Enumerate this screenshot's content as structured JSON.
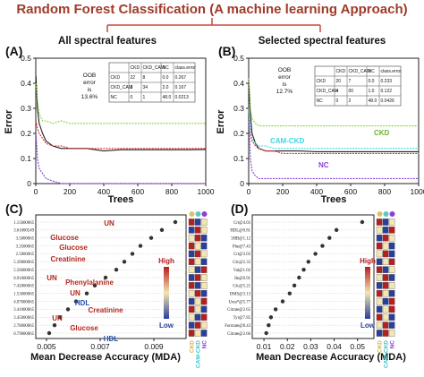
{
  "figure": {
    "title": "Random Forest Classification (A machine learning Approach)",
    "subtitle_left": "All spectral features",
    "subtitle_right": "Selected spectral features"
  },
  "chart_data": [
    {
      "panel": "(A)",
      "type": "line",
      "xlabel": "Trees",
      "ylabel": "Error",
      "xlim": [
        0,
        1000
      ],
      "ylim": [
        0,
        0.5
      ],
      "xticks": [
        "0",
        "200",
        "400",
        "600",
        "800",
        "1000"
      ],
      "yticks": [
        "0",
        "0.1",
        "0.2",
        "0.3",
        "0.4",
        "0.5"
      ],
      "oob_text": [
        "OOB",
        "error",
        "is",
        "13.6%"
      ],
      "series": [
        {
          "name": "OOB",
          "color": "#222222",
          "x": [
            1,
            10,
            20,
            40,
            60,
            100,
            150,
            200,
            300,
            400,
            500,
            600,
            700,
            800,
            900,
            1000
          ],
          "y": [
            0.43,
            0.3,
            0.24,
            0.2,
            0.17,
            0.15,
            0.14,
            0.14,
            0.14,
            0.13,
            0.135,
            0.135,
            0.135,
            0.135,
            0.135,
            0.136
          ]
        },
        {
          "name": "CKD",
          "color": "#e12a2a",
          "x": [
            1,
            10,
            20,
            40,
            60,
            100,
            150,
            200,
            300,
            400,
            500,
            600,
            700,
            800,
            900,
            1000
          ],
          "y": [
            0.25,
            0.22,
            0.2,
            0.18,
            0.16,
            0.15,
            0.15,
            0.14,
            0.14,
            0.14,
            0.14,
            0.14,
            0.14,
            0.14,
            0.14,
            0.14
          ]
        },
        {
          "name": "CKD_CAM",
          "color": "#8fd23a",
          "x": [
            1,
            10,
            20,
            40,
            60,
            100,
            150,
            200,
            300,
            400,
            500,
            600,
            700,
            800,
            900,
            1000
          ],
          "y": [
            0.4,
            0.33,
            0.28,
            0.25,
            0.25,
            0.24,
            0.25,
            0.24,
            0.24,
            0.24,
            0.24,
            0.24,
            0.24,
            0.24,
            0.24,
            0.24
          ]
        },
        {
          "name": "NC",
          "color": "#8a3fd6",
          "x": [
            1,
            10,
            20,
            40,
            60,
            100,
            150,
            200,
            300,
            400,
            500,
            600,
            700,
            800,
            900,
            1000
          ],
          "y": [
            0.2,
            0.1,
            0.06,
            0.04,
            0.02,
            0.01,
            0.0,
            0.0,
            0.0,
            0.0,
            0.0,
            0.0,
            0.0,
            0.0,
            0.0,
            0.0
          ]
        }
      ],
      "confusion_table": {
        "header": [
          "",
          "CKD",
          "CKD_CAM",
          "NC",
          "class.error"
        ],
        "rows": [
          [
            "CKD",
            "22",
            "8",
            "0.0",
            "0.267"
          ],
          [
            "CKD_CAM",
            "3",
            "34",
            "2.0",
            "0.167"
          ],
          [
            "NC",
            "0",
            "1",
            "48.0",
            "0.0213"
          ]
        ]
      }
    },
    {
      "panel": "(B)",
      "type": "line",
      "xlabel": "Trees",
      "ylabel": "Error",
      "xlim": [
        0,
        1000
      ],
      "ylim": [
        0,
        0.5
      ],
      "xticks": [
        "0",
        "200",
        "400",
        "600",
        "800",
        "1000"
      ],
      "yticks": [
        "0",
        "0.1",
        "0.2",
        "0.3",
        "0.4",
        "0.5"
      ],
      "oob_text": [
        "OOB",
        "error",
        "is",
        "12.7%"
      ],
      "series": [
        {
          "name": "OOB",
          "color": "#222222",
          "x": [
            1,
            10,
            20,
            40,
            60,
            100,
            150,
            200,
            300,
            400,
            500,
            600,
            700,
            800,
            900,
            1000
          ],
          "y": [
            0.4,
            0.28,
            0.2,
            0.16,
            0.14,
            0.13,
            0.13,
            0.13,
            0.13,
            0.127,
            0.127,
            0.127,
            0.127,
            0.127,
            0.127,
            0.127
          ]
        },
        {
          "name": "CKD",
          "color": "#e12a2a",
          "x": [
            1,
            10,
            20,
            40,
            60,
            100,
            150,
            200,
            300,
            400,
            500,
            600,
            700,
            800,
            900,
            1000
          ],
          "y": [
            0.3,
            0.2,
            0.17,
            0.15,
            0.14,
            0.13,
            0.13,
            0.12,
            0.12,
            0.12,
            0.12,
            0.12,
            0.12,
            0.12,
            0.12,
            0.12
          ]
        },
        {
          "name": "CKD_CAM",
          "color": "#8fd23a",
          "x": [
            1,
            10,
            20,
            40,
            60,
            100,
            150,
            200,
            300,
            400,
            500,
            600,
            700,
            800,
            900,
            1000
          ],
          "y": [
            0.42,
            0.3,
            0.26,
            0.24,
            0.23,
            0.23,
            0.23,
            0.23,
            0.23,
            0.23,
            0.23,
            0.23,
            0.23,
            0.23,
            0.23,
            0.23
          ]
        },
        {
          "name": "NC",
          "color": "#8a3fd6",
          "x": [
            1,
            10,
            20,
            40,
            60,
            100,
            150,
            200,
            300,
            400,
            500,
            600,
            700,
            800,
            900,
            1000
          ],
          "y": [
            0.25,
            0.1,
            0.05,
            0.03,
            0.02,
            0.02,
            0.02,
            0.02,
            0.02,
            0.02,
            0.02,
            0.02,
            0.02,
            0.02,
            0.02,
            0.02
          ]
        },
        {
          "name": "CAM-CKD",
          "color": "#3fd6e6",
          "x": [
            1,
            10,
            20,
            40,
            60,
            100,
            150,
            200,
            300,
            400,
            500,
            600,
            700,
            800,
            900,
            1000
          ],
          "y": [
            0.3,
            0.22,
            0.18,
            0.16,
            0.15,
            0.15,
            0.14,
            0.14,
            0.14,
            0.14,
            0.14,
            0.14,
            0.14,
            0.14,
            0.14,
            0.14
          ]
        }
      ],
      "labels": [
        "CAM-CKD",
        "CKD",
        "NC"
      ],
      "confusion_table": {
        "header": [
          "",
          "CKD",
          "CKD_CAM",
          "NC",
          "class.error"
        ],
        "rows": [
          [
            "CKD",
            "20",
            "7",
            "0.0",
            "0.233"
          ],
          [
            "CKD_CAM",
            "4",
            "00",
            "1.0",
            "0.122"
          ],
          [
            "NC",
            "0",
            "2",
            "48.0",
            "0.0426"
          ]
        ]
      }
    },
    {
      "panel": "(C)",
      "type": "scatter",
      "xlabel": "Mean Decrease Accuracy (MDA)",
      "xlim": [
        0.0046,
        0.0102
      ],
      "xticks": [
        0.005,
        0.007,
        0.009
      ],
      "features": [
        "1.15000065",
        "3.61000549",
        "3.5000065",
        "3.3500065",
        "2.5000065",
        "5.39000065",
        "5.56000065",
        "8.91000065",
        "7.42000065",
        "1.53000065",
        "4.07000065",
        "3.41000065",
        "3.45000065",
        "2.78000065",
        "0.79000065"
      ],
      "values": [
        0.0098,
        0.0093,
        0.0089,
        0.0085,
        0.0082,
        0.0079,
        0.0076,
        0.0072,
        0.0068,
        0.0065,
        0.0061,
        0.0058,
        0.0055,
        0.0053,
        0.0051
      ],
      "annotations": [
        {
          "text": "UN",
          "color": "#b22a1f"
        },
        {
          "text": "Glucose",
          "color": "#b22a1f"
        },
        {
          "text": "Glucose",
          "color": "#b22a1f"
        },
        {
          "text": "Creatinine",
          "color": "#b22a1f"
        },
        {
          "text": "UN",
          "color": "#b22a1f"
        },
        {
          "text": "Phenylalanine",
          "color": "#b22a1f"
        },
        {
          "text": "UN",
          "color": "#b22a1f"
        },
        {
          "text": "HDL",
          "color": "#1f4fb2"
        },
        {
          "text": "Creatinine",
          "color": "#b22a1f"
        },
        {
          "text": "UN",
          "color": "#b22a1f"
        },
        {
          "text": "Glucose",
          "color": "#b22a1f"
        },
        {
          "text": "HDL",
          "color": "#1f4fb2"
        }
      ],
      "colorbar": {
        "high": "High",
        "low": "Low"
      },
      "class_labels": [
        "CKD",
        "CAM-CKD",
        "NC"
      ],
      "heat": [
        [
          2,
          0,
          1
        ],
        [
          0,
          2,
          1
        ],
        [
          1,
          2,
          0
        ],
        [
          2,
          1,
          0
        ],
        [
          0,
          2,
          1
        ],
        [
          2,
          1,
          0
        ],
        [
          1,
          0,
          2
        ],
        [
          0,
          2,
          1
        ],
        [
          2,
          0,
          1
        ],
        [
          1,
          2,
          0
        ],
        [
          0,
          1,
          2
        ],
        [
          2,
          1,
          0
        ],
        [
          1,
          0,
          2
        ],
        [
          0,
          2,
          1
        ],
        [
          2,
          1,
          0
        ]
      ]
    },
    {
      "panel": "(D)",
      "type": "scatter",
      "xlabel": "Mean Decrease Accuracy (MDA)",
      "xlim": [
        0.005,
        0.057
      ],
      "xticks": [
        0.01,
        0.02,
        0.03,
        0.04,
        0.05
      ],
      "features": [
        "Crt@4.03",
        "HDL@0.81",
        "3HB@1.12",
        "Phe@7.43",
        "Crt@3.03",
        "Glc@2.33",
        "Val@1.02",
        "Ile@0.91",
        "Glc@5.21",
        "DMS@3.13",
        "Urea*@5.77",
        "Citrate@2.65",
        "Tyr@7.85",
        "Formate@8.43",
        "Citrate@2.66"
      ],
      "values": [
        0.052,
        0.041,
        0.038,
        0.035,
        0.032,
        0.029,
        0.027,
        0.025,
        0.023,
        0.021,
        0.018,
        0.015,
        0.013,
        0.012,
        0.011
      ],
      "colorbar": {
        "high": "High",
        "low": "Low"
      },
      "class_labels": [
        "CKD",
        "CAM-CKD",
        "NC"
      ],
      "heat": [
        [
          2,
          0,
          1
        ],
        [
          1,
          0,
          2
        ],
        [
          0,
          2,
          1
        ],
        [
          2,
          1,
          0
        ],
        [
          1,
          2,
          0
        ],
        [
          0,
          1,
          2
        ],
        [
          2,
          0,
          1
        ],
        [
          1,
          2,
          0
        ],
        [
          0,
          2,
          1
        ],
        [
          2,
          1,
          0
        ],
        [
          1,
          0,
          2
        ],
        [
          0,
          1,
          2
        ],
        [
          2,
          1,
          0
        ],
        [
          1,
          2,
          0
        ],
        [
          0,
          2,
          1
        ]
      ]
    }
  ],
  "colors": {
    "title": "#a03b2a",
    "bracket": "#c94a3a",
    "heat_low": "#2a3f9a",
    "heat_mid": "#f3e6b0",
    "heat_high": "#b51f1f",
    "dot": "#333333",
    "ckd_circle": "#d9c36a",
    "cam_circle": "#5ec6c9",
    "nc_circle": "#8a3fd6"
  }
}
